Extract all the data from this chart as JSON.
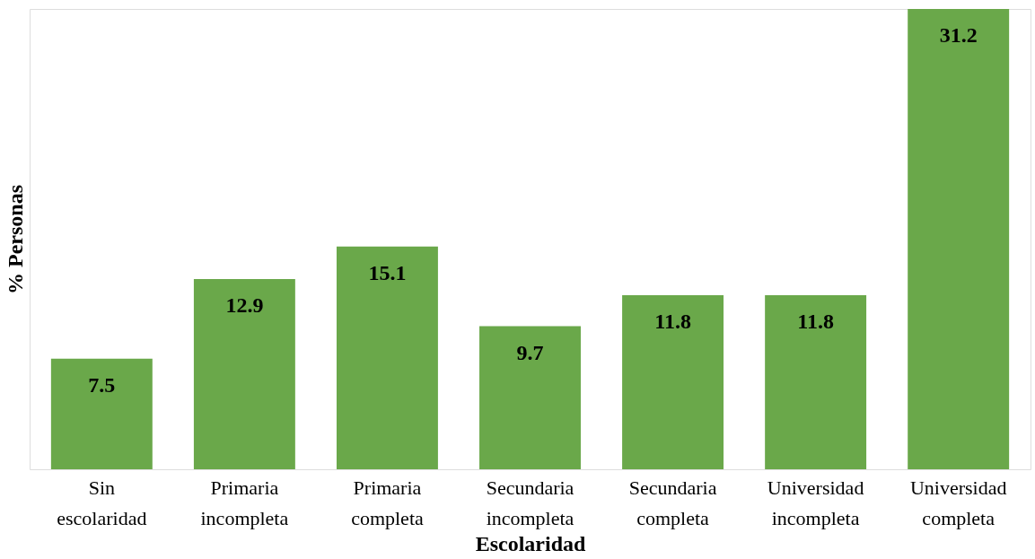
{
  "chart_data": {
    "type": "bar",
    "xlabel": "Escolaridad",
    "ylabel": "% Personas",
    "categories": [
      "Sin escolaridad",
      "Primaria incompleta",
      "Primaria completa",
      "Secundaria incompleta",
      "Secundaria completa",
      "Universidad incompleta",
      "Universidad completa"
    ],
    "values": [
      7.5,
      12.9,
      15.1,
      9.7,
      11.8,
      11.8,
      31.2
    ],
    "color": "#6aa84a",
    "data_labels": true,
    "grid": false
  }
}
